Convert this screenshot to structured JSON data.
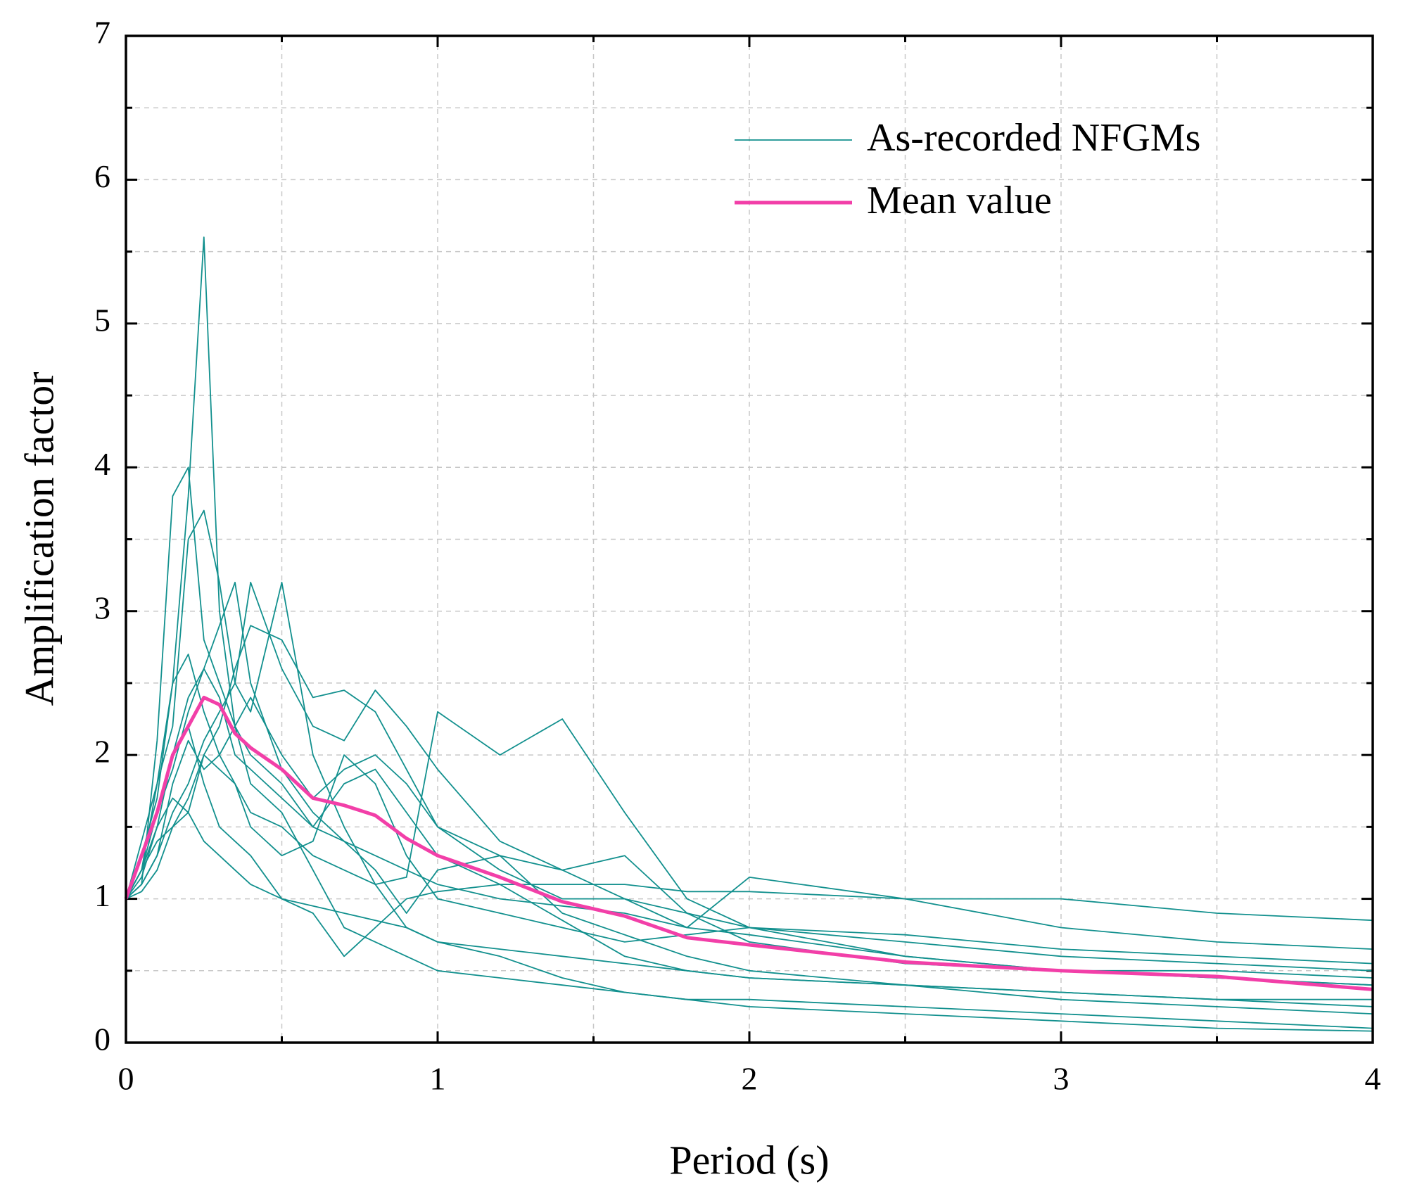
{
  "chart_data": {
    "type": "line",
    "xlabel": "Period (s)",
    "ylabel": "Amplification factor",
    "x": [
      0,
      0.05,
      0.1,
      0.15,
      0.2,
      0.25,
      0.3,
      0.35,
      0.4,
      0.5,
      0.6,
      0.7,
      0.8,
      0.9,
      1.0,
      1.2,
      1.4,
      1.6,
      1.8,
      2.0,
      2.5,
      3.0,
      3.5,
      4.0
    ],
    "series": [
      {
        "name": "As-recorded NFGMs",
        "color": "#12908e",
        "width": 1.8,
        "values": [
          [
            1,
            1.2,
            1.8,
            2.5,
            3.8,
            5.6,
            3.0,
            2.2,
            2.0,
            1.8,
            1.5,
            1.4,
            1.3,
            1.2,
            1.1,
            1.0,
            0.95,
            0.9,
            0.8,
            0.75,
            0.6,
            0.5,
            0.45,
            0.4
          ],
          [
            1,
            1.1,
            2.1,
            3.8,
            4.0,
            2.8,
            2.5,
            2.2,
            2.4,
            2.0,
            1.7,
            1.9,
            2.0,
            1.8,
            1.5,
            1.3,
            0.9,
            0.75,
            0.6,
            0.5,
            0.4,
            0.3,
            0.25,
            0.2
          ],
          [
            1,
            1.4,
            1.8,
            2.2,
            3.5,
            3.7,
            3.2,
            2.5,
            2.3,
            3.2,
            2.0,
            1.5,
            1.1,
            0.8,
            0.7,
            0.65,
            0.6,
            0.55,
            0.5,
            0.45,
            0.4,
            0.35,
            0.3,
            0.25
          ],
          [
            1,
            1.2,
            1.5,
            1.7,
            1.6,
            2.0,
            2.2,
            2.6,
            2.9,
            2.8,
            2.4,
            2.45,
            2.3,
            1.9,
            1.5,
            1.2,
            1.0,
            1.0,
            0.9,
            0.8,
            0.6,
            0.5,
            0.5,
            0.45
          ],
          [
            1,
            1.3,
            1.6,
            2.0,
            2.2,
            1.8,
            1.5,
            1.4,
            1.3,
            1.0,
            0.9,
            0.6,
            0.8,
            1.0,
            1.05,
            1.1,
            1.1,
            1.1,
            1.05,
            1.05,
            1.0,
            1.0,
            0.9,
            0.85
          ],
          [
            1,
            1.1,
            1.3,
            1.6,
            1.8,
            2.1,
            2.3,
            2.5,
            3.2,
            2.6,
            2.2,
            2.1,
            2.45,
            2.2,
            1.9,
            1.4,
            1.2,
            1.3,
            0.9,
            0.7,
            0.55,
            0.5,
            0.45,
            0.4
          ],
          [
            1,
            1.2,
            1.4,
            1.5,
            1.7,
            2.0,
            1.9,
            1.8,
            1.6,
            1.5,
            1.3,
            1.2,
            1.1,
            1.15,
            2.3,
            2.0,
            2.25,
            1.6,
            1.0,
            0.8,
            0.7,
            0.6,
            0.55,
            0.5
          ],
          [
            1,
            1.05,
            1.2,
            1.5,
            1.6,
            1.4,
            1.3,
            1.2,
            1.1,
            1.0,
            0.95,
            0.9,
            0.85,
            0.8,
            0.7,
            0.6,
            0.45,
            0.35,
            0.3,
            0.25,
            0.2,
            0.15,
            0.1,
            0.08
          ],
          [
            1,
            1.3,
            1.7,
            2.5,
            2.7,
            2.3,
            2.0,
            1.8,
            1.5,
            1.3,
            1.4,
            2.0,
            1.8,
            1.3,
            1.0,
            0.9,
            0.8,
            0.7,
            0.75,
            0.8,
            0.75,
            0.65,
            0.6,
            0.55
          ],
          [
            1,
            1.2,
            1.6,
            1.9,
            2.3,
            2.6,
            2.9,
            3.2,
            2.5,
            1.9,
            1.6,
            1.4,
            1.2,
            0.9,
            1.2,
            1.3,
            1.2,
            1.0,
            0.8,
            1.15,
            1.0,
            0.8,
            0.7,
            0.65
          ],
          [
            1,
            1.1,
            1.3,
            1.8,
            2.1,
            1.9,
            2.0,
            2.2,
            1.8,
            1.6,
            1.2,
            0.8,
            0.7,
            0.6,
            0.5,
            0.45,
            0.4,
            0.35,
            0.3,
            0.3,
            0.25,
            0.2,
            0.15,
            0.1
          ],
          [
            1,
            1.15,
            1.5,
            2.0,
            2.4,
            2.6,
            2.4,
            2.0,
            1.9,
            1.7,
            1.5,
            1.8,
            1.9,
            1.6,
            1.3,
            1.1,
            0.85,
            0.6,
            0.5,
            0.45,
            0.4,
            0.35,
            0.3,
            0.3
          ]
        ]
      },
      {
        "name": "Mean value",
        "color": "#f23fa8",
        "width": 5,
        "values": [
          [
            1.0,
            1.3,
            1.6,
            2.0,
            2.2,
            2.4,
            2.35,
            2.15,
            2.05,
            1.9,
            1.7,
            1.65,
            1.58,
            1.42,
            1.3,
            1.15,
            0.98,
            0.88,
            0.73,
            0.68,
            0.56,
            0.5,
            0.46,
            0.37
          ]
        ]
      }
    ],
    "xlim": [
      0,
      4
    ],
    "xticks": [
      0,
      1,
      2,
      3,
      4
    ],
    "xminor": [
      0.5,
      1.5,
      2.5,
      3.5
    ],
    "ylim": [
      0,
      7
    ],
    "yticks": [
      0,
      1,
      2,
      3,
      4,
      5,
      6,
      7
    ],
    "yminor": [
      0.5,
      1.5,
      2.5,
      3.5,
      4.5,
      5.5,
      6.5
    ],
    "grid": true,
    "legend": "upper right"
  }
}
